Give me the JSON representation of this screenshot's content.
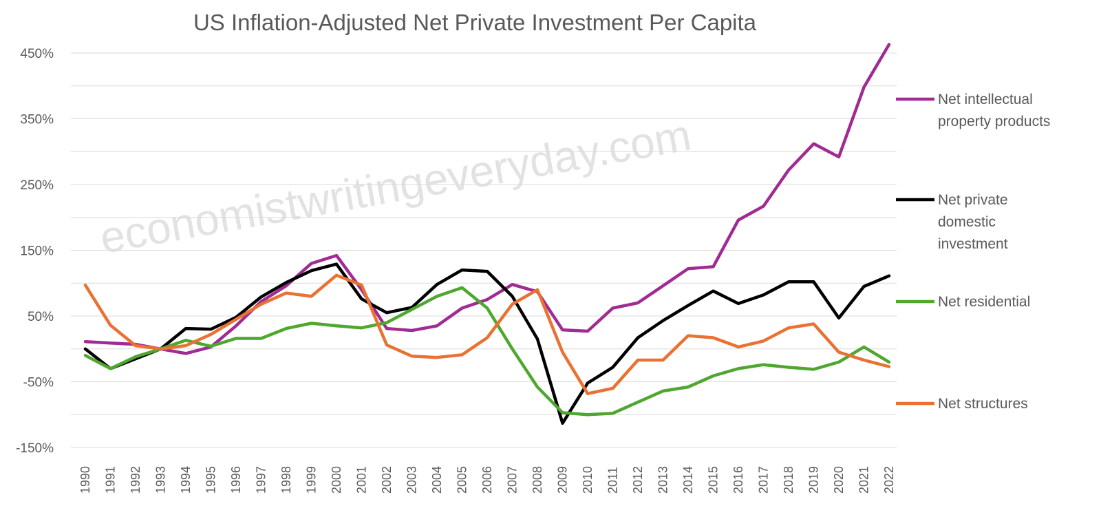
{
  "chart_data": {
    "type": "line",
    "title": "US Inflation-Adjusted  Net Private Investment Per Capita",
    "watermark": "economistwritingeveryday.com",
    "xlabel": "",
    "ylabel": "",
    "ylim": [
      -150,
      450
    ],
    "yticks": [
      450,
      350,
      250,
      150,
      50,
      -50,
      -150
    ],
    "ytick_labels": [
      "450%",
      "350%",
      "250%",
      "150%",
      "50%",
      "-50%",
      "-150%"
    ],
    "grid": true,
    "legend_position": "right",
    "categories": [
      "1990",
      "1991",
      "1992",
      "1993",
      "1994",
      "1995",
      "1996",
      "1997",
      "1998",
      "1999",
      "2000",
      "2001",
      "2002",
      "2003",
      "2004",
      "2005",
      "2006",
      "2007",
      "2008",
      "2009",
      "2010",
      "2011",
      "2012",
      "2013",
      "2014",
      "2015",
      "2016",
      "2017",
      "2018",
      "2019",
      "2020",
      "2021",
      "2022"
    ],
    "series": [
      {
        "name": "Net intellectual property products",
        "legend_lines": [
          "Net intellectual",
          "property products"
        ],
        "color": "#a02b93",
        "values": [
          11,
          9,
          7,
          0,
          -7,
          3,
          35,
          72,
          96,
          130,
          142,
          90,
          31,
          28,
          35,
          62,
          75,
          98,
          87,
          29,
          27,
          62,
          70,
          96,
          122,
          125,
          196,
          217,
          272,
          312,
          292,
          398,
          463
        ]
      },
      {
        "name": "Net private domestic investment",
        "legend_lines": [
          "Net private",
          "domestic",
          "investment"
        ],
        "color": "#000000",
        "values": [
          0,
          -30,
          -15,
          0,
          31,
          30,
          48,
          79,
          101,
          119,
          129,
          76,
          55,
          63,
          98,
          120,
          118,
          80,
          15,
          -113,
          -52,
          -28,
          17,
          43,
          66,
          88,
          69,
          82,
          102,
          102,
          47,
          95,
          111
        ]
      },
      {
        "name": "Net residential",
        "legend_lines": [
          "Net residential"
        ],
        "color": "#4ea72e",
        "values": [
          -10,
          -30,
          -12,
          0,
          13,
          4,
          16,
          16,
          31,
          39,
          35,
          32,
          40,
          60,
          80,
          93,
          62,
          0,
          -58,
          -97,
          -100,
          -98,
          -81,
          -64,
          -58,
          -41,
          -30,
          -24,
          -28,
          -31,
          -20,
          3,
          -20
        ]
      },
      {
        "name": "Net structures",
        "legend_lines": [
          "Net structures"
        ],
        "color": "#e97132",
        "values": [
          97,
          36,
          5,
          0,
          5,
          22,
          45,
          68,
          85,
          80,
          112,
          97,
          6,
          -11,
          -13,
          -9,
          17,
          68,
          90,
          -5,
          -68,
          -60,
          -17,
          -17,
          20,
          17,
          3,
          12,
          32,
          38,
          -5,
          -17,
          -27
        ]
      }
    ]
  }
}
